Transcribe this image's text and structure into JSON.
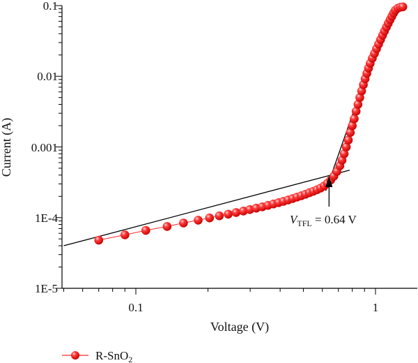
{
  "chart_data": {
    "type": "scatter",
    "xlabel": "Voltage (V)",
    "ylabel": "Current (A)",
    "xscale": "log",
    "yscale": "log",
    "xlim": [
      0.05,
      1.5
    ],
    "ylim": [
      1e-05,
      0.1
    ],
    "x_ticks": [
      {
        "value": 0.1,
        "label": "0.1"
      },
      {
        "value": 1,
        "label": "1"
      }
    ],
    "y_ticks": [
      {
        "value": 1e-05,
        "label": "1E-5"
      },
      {
        "value": 0.0001,
        "label": "1E-4"
      },
      {
        "value": 0.001,
        "label": "0.001"
      },
      {
        "value": 0.01,
        "label": "0.01"
      },
      {
        "value": 0.1,
        "label": "0.1"
      }
    ],
    "grid": false,
    "legend_position": "bottom-left",
    "series": [
      {
        "name": "R-SnO",
        "name_subscript": "2",
        "color": "#ff2a2a",
        "marker": "sphere",
        "points": [
          [
            0.07,
            4.8e-05
          ],
          [
            0.09,
            5.7e-05
          ],
          [
            0.11,
            6.6e-05
          ],
          [
            0.135,
            7.5e-05
          ],
          [
            0.158,
            8.4e-05
          ],
          [
            0.182,
            9.2e-05
          ],
          [
            0.203,
            9.9e-05
          ],
          [
            0.223,
            0.000106
          ],
          [
            0.243,
            0.000112
          ],
          [
            0.262,
            0.000118
          ],
          [
            0.281,
            0.000124
          ],
          [
            0.299,
            0.00013
          ],
          [
            0.318,
            0.000136
          ],
          [
            0.337,
            0.000142
          ],
          [
            0.356,
            0.000149
          ],
          [
            0.375,
            0.000156
          ],
          [
            0.394,
            0.000163
          ],
          [
            0.413,
            0.00017
          ],
          [
            0.432,
            0.000178
          ],
          [
            0.451,
            0.000186
          ],
          [
            0.47,
            0.000195
          ],
          [
            0.49,
            0.000204
          ],
          [
            0.51,
            0.000214
          ],
          [
            0.53,
            0.000225
          ],
          [
            0.55,
            0.000236
          ],
          [
            0.57,
            0.000248
          ],
          [
            0.59,
            0.000262
          ],
          [
            0.61,
            0.00028
          ],
          [
            0.63,
            0.000305
          ],
          [
            0.65,
            0.00034
          ],
          [
            0.67,
            0.000385
          ],
          [
            0.69,
            0.00045
          ],
          [
            0.71,
            0.00054
          ],
          [
            0.725,
            0.00065
          ],
          [
            0.74,
            0.0008
          ],
          [
            0.755,
            0.001
          ],
          [
            0.77,
            0.00125
          ],
          [
            0.785,
            0.0016
          ],
          [
            0.8,
            0.002
          ],
          [
            0.815,
            0.0025
          ],
          [
            0.83,
            0.0032
          ],
          [
            0.845,
            0.004
          ],
          [
            0.86,
            0.005
          ],
          [
            0.875,
            0.0062
          ],
          [
            0.89,
            0.0076
          ],
          [
            0.905,
            0.0092
          ],
          [
            0.92,
            0.011
          ],
          [
            0.935,
            0.013
          ],
          [
            0.95,
            0.0152
          ],
          [
            0.97,
            0.018
          ],
          [
            0.99,
            0.021
          ],
          [
            1.01,
            0.0245
          ],
          [
            1.03,
            0.0285
          ],
          [
            1.05,
            0.033
          ],
          [
            1.07,
            0.038
          ],
          [
            1.09,
            0.0435
          ],
          [
            1.11,
            0.0495
          ],
          [
            1.13,
            0.056
          ],
          [
            1.15,
            0.063
          ],
          [
            1.17,
            0.0705
          ],
          [
            1.19,
            0.0785
          ],
          [
            1.21,
            0.086
          ],
          [
            1.24,
            0.092
          ],
          [
            1.27,
            0.095
          ],
          [
            1.3,
            0.096
          ]
        ]
      }
    ],
    "fit_lines": [
      {
        "points": [
          [
            0.05,
            4e-05
          ],
          [
            0.78,
            0.00047
          ]
        ]
      },
      {
        "points": [
          [
            0.62,
            0.00024
          ],
          [
            0.93,
            0.012
          ]
        ]
      }
    ],
    "annotations": [
      {
        "italic": "V",
        "subscript": "TFL",
        "text": " = 0.64 V",
        "x": 0.64
      }
    ]
  }
}
